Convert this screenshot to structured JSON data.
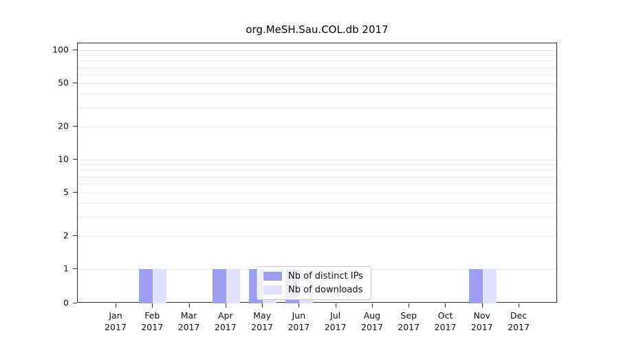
{
  "chart_data": {
    "type": "bar",
    "title": "org.MeSH.Sau.COL.db 2017",
    "categories": [
      "Jan",
      "Feb",
      "Mar",
      "Apr",
      "May",
      "Jun",
      "Jul",
      "Aug",
      "Sep",
      "Oct",
      "Nov",
      "Dec"
    ],
    "x_tick_second_line": "2017",
    "series": [
      {
        "name": "Nb of distinct IPs",
        "color": "#9d9df1",
        "values": [
          0,
          1,
          0,
          1,
          1,
          1,
          0,
          0,
          0,
          0,
          1,
          0
        ]
      },
      {
        "name": "Nb of downloads",
        "color": "#e1e1fb",
        "values": [
          0,
          1,
          0,
          1,
          1,
          1,
          0,
          0,
          0,
          0,
          1,
          0
        ]
      }
    ],
    "yticks": [
      0,
      1,
      2,
      5,
      10,
      20,
      50,
      100
    ],
    "yscale": "symlog",
    "ylim": [
      0,
      115
    ],
    "grid": {
      "show": true,
      "orientation": "horizontal",
      "minor": true,
      "color": "#e9e9e9"
    },
    "legend": {
      "position": "bottom-center",
      "border_color": "#c9c9c9",
      "background": "rgba(255,255,255,0.85)"
    }
  }
}
